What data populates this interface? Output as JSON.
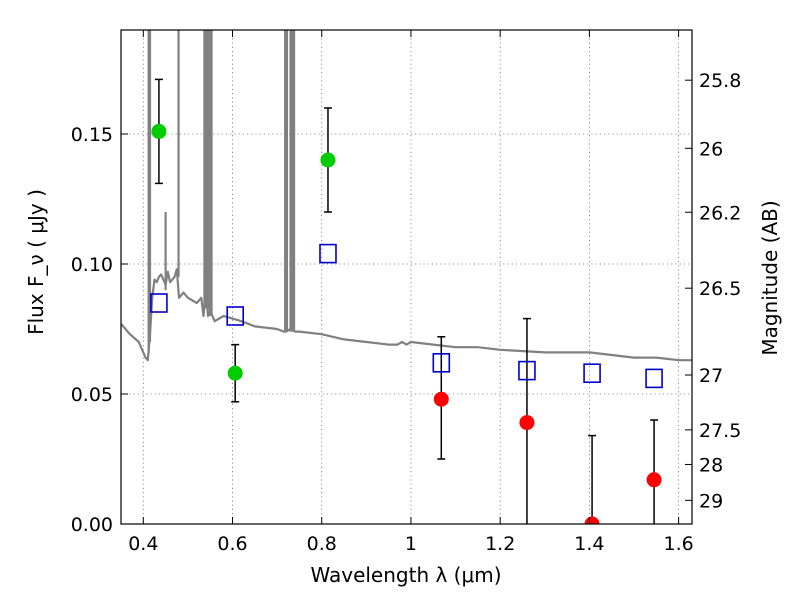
{
  "chart_data": {
    "type": "scatter",
    "xlabel": "Wavelength  λ (μm)",
    "ylabel": "Flux  F_ν  ( μJy )",
    "ylabel_right": "Magnitude (AB)",
    "xlim": [
      0.35,
      1.63
    ],
    "ylim": [
      0.0,
      0.19
    ],
    "grid": true,
    "x_ticks": [
      0.4,
      0.6,
      0.8,
      1.0,
      1.2,
      1.4,
      1.6
    ],
    "x_tick_labels": [
      "0.4",
      "0.6",
      "0.8",
      "1",
      "1.2",
      "1.4",
      "1.6"
    ],
    "y_ticks": [
      0.0,
      0.05,
      0.1,
      0.15
    ],
    "y_tick_labels": [
      "0.00",
      "0.05",
      "0.10",
      "0.15"
    ],
    "mag_ticks": [
      {
        "label": "25.8",
        "flux": 0.1707
      },
      {
        "label": "26",
        "flux": 0.1445
      },
      {
        "label": "26.2",
        "flux": 0.1199
      },
      {
        "label": "26.5",
        "flux": 0.0907
      },
      {
        "label": "27",
        "flux": 0.0573
      },
      {
        "label": "27.5",
        "flux": 0.0362
      },
      {
        "label": "28",
        "flux": 0.0229
      },
      {
        "label": "29",
        "flux": 0.0091
      }
    ],
    "series": [
      {
        "marker": "circle",
        "color": "#00cc00",
        "points": [
          {
            "x": 0.435,
            "y": 0.151,
            "err_lo": 0.131,
            "err_hi": 0.171
          },
          {
            "x": 0.606,
            "y": 0.058,
            "err_lo": 0.047,
            "err_hi": 0.069
          },
          {
            "x": 0.814,
            "y": 0.14,
            "err_lo": 0.12,
            "err_hi": 0.16
          }
        ]
      },
      {
        "marker": "circle",
        "color": "#ff0000",
        "points": [
          {
            "x": 1.068,
            "y": 0.048,
            "err_lo": 0.025,
            "err_hi": 0.072
          },
          {
            "x": 1.26,
            "y": 0.039,
            "err_lo": 0.0,
            "err_hi": 0.079
          },
          {
            "x": 1.406,
            "y": 0.0,
            "err_lo": 0.0,
            "err_hi": 0.034
          },
          {
            "x": 1.545,
            "y": 0.017,
            "err_lo": 0.0,
            "err_hi": 0.04
          }
        ]
      },
      {
        "marker": "open-square",
        "color": "#0000cc",
        "points": [
          {
            "x": 0.435,
            "y": 0.085
          },
          {
            "x": 0.606,
            "y": 0.08
          },
          {
            "x": 0.814,
            "y": 0.104
          },
          {
            "x": 1.068,
            "y": 0.062
          },
          {
            "x": 1.26,
            "y": 0.059
          },
          {
            "x": 1.406,
            "y": 0.058
          },
          {
            "x": 1.545,
            "y": 0.056
          }
        ]
      },
      {
        "marker": "line",
        "color": "#808080",
        "x": [
          0.35,
          0.37,
          0.39,
          0.4,
          0.405,
          0.41,
          0.415,
          0.42,
          0.425,
          0.43,
          0.435,
          0.44,
          0.445,
          0.45,
          0.455,
          0.46,
          0.47,
          0.475,
          0.48,
          0.49,
          0.5,
          0.52,
          0.53,
          0.535,
          0.54,
          0.545,
          0.55,
          0.555,
          0.56,
          0.58,
          0.6,
          0.62,
          0.65,
          0.7,
          0.715,
          0.72,
          0.73,
          0.74,
          0.75,
          0.8,
          0.85,
          0.9,
          0.95,
          0.97,
          0.98,
          0.99,
          1.0,
          1.05,
          1.1,
          1.15,
          1.2,
          1.3,
          1.4,
          1.5,
          1.55,
          1.6,
          1.63
        ],
        "y": [
          0.077,
          0.073,
          0.07,
          0.066,
          0.064,
          0.063,
          0.073,
          0.087,
          0.094,
          0.093,
          0.095,
          0.096,
          0.094,
          0.092,
          0.097,
          0.093,
          0.095,
          0.098,
          0.087,
          0.089,
          0.087,
          0.085,
          0.087,
          0.08,
          0.09,
          0.08,
          0.082,
          0.08,
          0.078,
          0.08,
          0.079,
          0.078,
          0.076,
          0.075,
          0.074,
          0.074,
          0.075,
          0.074,
          0.074,
          0.073,
          0.071,
          0.07,
          0.069,
          0.069,
          0.07,
          0.069,
          0.07,
          0.069,
          0.068,
          0.068,
          0.067,
          0.066,
          0.066,
          0.064,
          0.064,
          0.063,
          0.063
        ]
      }
    ],
    "emission_spikes": [
      {
        "x": 0.412,
        "y_base": 0.066,
        "y_top": 0.19
      },
      {
        "x": 0.415,
        "y_base": 0.07,
        "y_top": 0.19
      },
      {
        "x": 0.45,
        "y_base": 0.09,
        "y_top": 0.12
      },
      {
        "x": 0.479,
        "y_base": 0.095,
        "y_top": 0.19
      },
      {
        "x": 0.537,
        "y_base": 0.083,
        "y_top": 0.19
      },
      {
        "x": 0.541,
        "y_base": 0.083,
        "y_top": 0.19
      },
      {
        "x": 0.545,
        "y_base": 0.083,
        "y_top": 0.19
      },
      {
        "x": 0.549,
        "y_base": 0.08,
        "y_top": 0.19
      },
      {
        "x": 0.553,
        "y_base": 0.08,
        "y_top": 0.19
      },
      {
        "x": 0.718,
        "y_base": 0.074,
        "y_top": 0.19
      },
      {
        "x": 0.722,
        "y_base": 0.074,
        "y_top": 0.19
      },
      {
        "x": 0.73,
        "y_base": 0.074,
        "y_top": 0.19
      },
      {
        "x": 0.734,
        "y_base": 0.074,
        "y_top": 0.19
      },
      {
        "x": 0.738,
        "y_base": 0.074,
        "y_top": 0.19
      }
    ]
  }
}
